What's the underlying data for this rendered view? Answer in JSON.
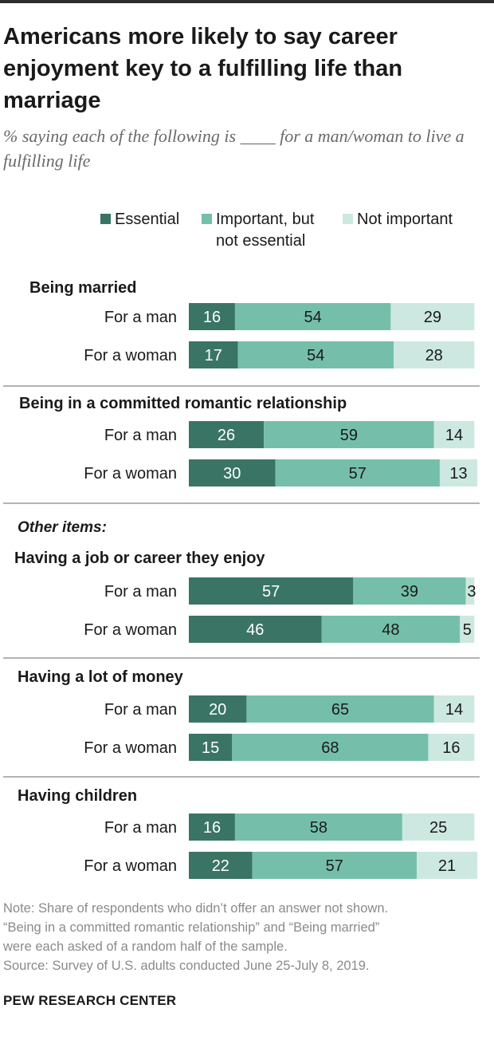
{
  "title": "Americans more likely to say career enjoyment key to a fulfilling life than marriage",
  "subtitle": "% saying each of the following is ____ for a man/woman to live a fulfilling life",
  "colors": {
    "essential": "#3a7464",
    "important": "#75bfaa",
    "not_important": "#cde8e0",
    "dark_text": "#ffffff",
    "light_text": "#1a1a1a"
  },
  "legend": {
    "essential": "Essential",
    "important_line1": "Important, but",
    "important_line2": "not essential",
    "not_important": "Not important"
  },
  "other_items_label": "Other items:",
  "chart_data": {
    "type": "bar",
    "orientation": "horizontal",
    "stacked": true,
    "unit": "%",
    "xlim": [
      0,
      100
    ],
    "series_names": [
      "Essential",
      "Important, but not essential",
      "Not important"
    ],
    "groups": [
      {
        "title": "Being married",
        "rows": [
          {
            "label": "For a man",
            "values": [
              16,
              54,
              29
            ]
          },
          {
            "label": "For a woman",
            "values": [
              17,
              54,
              28
            ]
          }
        ]
      },
      {
        "title": "Being in a committed romantic relationship",
        "rows": [
          {
            "label": "For a man",
            "values": [
              26,
              59,
              14
            ]
          },
          {
            "label": "For a woman",
            "values": [
              30,
              57,
              13
            ]
          }
        ]
      },
      {
        "title": "Having a job or career they enjoy",
        "rows": [
          {
            "label": "For a man",
            "values": [
              57,
              39,
              3
            ]
          },
          {
            "label": "For a woman",
            "values": [
              46,
              48,
              5
            ]
          }
        ]
      },
      {
        "title": "Having a lot of money",
        "rows": [
          {
            "label": "For a man",
            "values": [
              20,
              65,
              14
            ]
          },
          {
            "label": "For a woman",
            "values": [
              15,
              68,
              16
            ]
          }
        ]
      },
      {
        "title": "Having children",
        "rows": [
          {
            "label": "For a man",
            "values": [
              16,
              58,
              25
            ]
          },
          {
            "label": "For a woman",
            "values": [
              22,
              57,
              21
            ]
          }
        ]
      }
    ]
  },
  "note": {
    "line1": "Note: Share of respondents who didn’t offer an answer not shown.",
    "line2": "“Being in a committed romantic relationship” and “Being married”",
    "line3": "were each asked of a random half of the sample.",
    "line4": "Source: Survey of U.S. adults conducted June 25-July 8, 2019."
  },
  "brand": "PEW RESEARCH CENTER"
}
